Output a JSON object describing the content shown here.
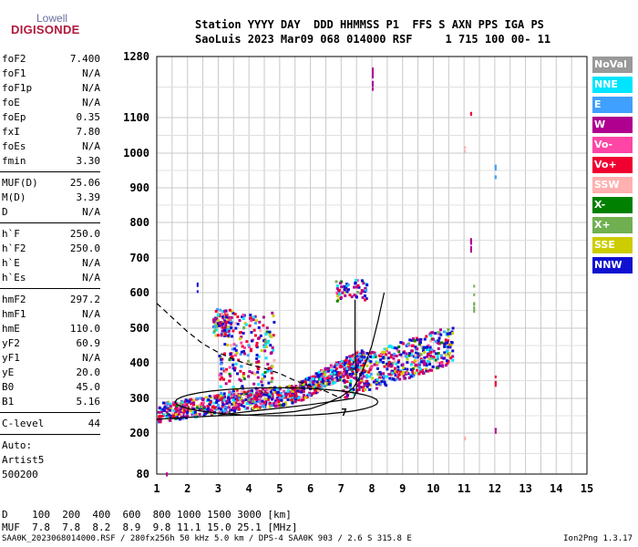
{
  "logo": {
    "line1": "Lowell",
    "line2": "DIGISONDE"
  },
  "header": {
    "line1": "Station YYYY DAY  DDD HHMMSS P1  FFS S AXN PPS IGA PS",
    "line2": "SaoLuis 2023 Mar09 068 014000 RSF     1 715 100 00- 11"
  },
  "params": [
    {
      "name": "foF2",
      "value": "7.400"
    },
    {
      "name": "foF1",
      "value": "N/A"
    },
    {
      "name": "foF1p",
      "value": "N/A"
    },
    {
      "name": "foE",
      "value": "N/A"
    },
    {
      "name": "foEp",
      "value": "0.35"
    },
    {
      "name": "fxI",
      "value": "7.80"
    },
    {
      "name": "foEs",
      "value": "N/A"
    },
    {
      "name": "fmin",
      "value": "3.30"
    },
    {
      "name": "MUF(D)",
      "value": "25.06"
    },
    {
      "name": "M(D)",
      "value": "3.39"
    },
    {
      "name": "D",
      "value": "N/A"
    },
    {
      "name": "h`F",
      "value": "250.0"
    },
    {
      "name": "h`F2",
      "value": "250.0"
    },
    {
      "name": "h`E",
      "value": "N/A"
    },
    {
      "name": "h`Es",
      "value": "N/A"
    },
    {
      "name": "hmF2",
      "value": "297.2"
    },
    {
      "name": "hmF1",
      "value": "N/A"
    },
    {
      "name": "hmE",
      "value": "110.0"
    },
    {
      "name": "yF2",
      "value": "60.9"
    },
    {
      "name": "yF1",
      "value": "N/A"
    },
    {
      "name": "yE",
      "value": "20.0"
    },
    {
      "name": "B0",
      "value": "45.0"
    },
    {
      "name": "B1",
      "value": "5.16"
    },
    {
      "name": "C-level",
      "value": "44"
    }
  ],
  "notes": {
    "line1": "Auto:",
    "line2": "Artist5",
    "line3": "500200"
  },
  "legend": [
    {
      "label": "NoVal",
      "color": "#999999"
    },
    {
      "label": "NNE",
      "color": "#00e5ff"
    },
    {
      "label": "E",
      "color": "#3fa0ff"
    },
    {
      "label": "W",
      "color": "#b0008f"
    },
    {
      "label": "Vo-",
      "color": "#ff45a5"
    },
    {
      "label": "Vo+",
      "color": "#f00030"
    },
    {
      "label": "SSW",
      "color": "#ffb0b0"
    },
    {
      "label": "X-",
      "color": "#008000"
    },
    {
      "label": "X+",
      "color": "#70b050"
    },
    {
      "label": "SSE",
      "color": "#cccc00"
    },
    {
      "label": "NNW",
      "color": "#1010d0"
    }
  ],
  "muf_table": {
    "line1": "D    100  200  400  600  800 1000 1500 3000 [km]",
    "line2": "MUF  7.8  7.8  8.2  8.9  9.8 11.1 15.0 25.1 [MHz]"
  },
  "footer": "SAA0K_2023068014000.RSF / 280fx256h 50 kHz 5.0 km / DPS-4 SAA0K 903 / 2.6 S 315.8 E",
  "version": "Ion2Png 1.3.17",
  "chart_data": {
    "type": "scatter",
    "x_ticks": [
      "1",
      "2",
      "3",
      "4",
      "5",
      "6",
      "7",
      "8",
      "9",
      "10",
      "11",
      "12",
      "13",
      "14",
      "15"
    ],
    "y_ticks": [
      "80",
      "200",
      "300",
      "400",
      "500",
      "600",
      "700",
      "800",
      "900",
      "1000",
      "1100",
      "1280"
    ],
    "xlim": [
      1,
      15
    ],
    "ylim": [
      80,
      1280
    ],
    "grid": true,
    "legend_position": "right",
    "traces": [
      {
        "name": "o-trace",
        "points": [
          [
            1.0,
            240
          ],
          [
            2.0,
            245
          ],
          [
            3.0,
            250
          ],
          [
            4.0,
            252
          ],
          [
            5.0,
            258
          ],
          [
            5.5,
            262
          ],
          [
            6.0,
            270
          ],
          [
            6.5,
            285
          ],
          [
            7.0,
            305
          ],
          [
            7.4,
            330
          ],
          [
            7.6,
            360
          ],
          [
            7.8,
            400
          ],
          [
            8.0,
            450
          ],
          [
            8.2,
            520
          ],
          [
            8.4,
            600
          ]
        ]
      },
      {
        "name": "x-trace",
        "points": [
          [
            1.0,
            570
          ],
          [
            1.5,
            530
          ],
          [
            2.0,
            490
          ],
          [
            2.5,
            455
          ],
          [
            3.0,
            430
          ],
          [
            3.5,
            410
          ],
          [
            4.0,
            395
          ],
          [
            4.5,
            385
          ],
          [
            5.0,
            370
          ],
          [
            5.5,
            350
          ],
          [
            6.0,
            335
          ],
          [
            6.5,
            320
          ],
          [
            7.0,
            300
          ]
        ]
      },
      {
        "name": "profile",
        "points": [
          [
            3.0,
            252
          ],
          [
            4.0,
            262
          ],
          [
            5.0,
            272
          ],
          [
            6.0,
            282
          ],
          [
            6.8,
            292
          ],
          [
            7.4,
            300
          ],
          [
            7.5,
            320
          ],
          [
            7.5,
            360
          ],
          [
            7.45,
            440
          ],
          [
            7.45,
            580
          ]
        ]
      }
    ],
    "profile_label": "7"
  }
}
